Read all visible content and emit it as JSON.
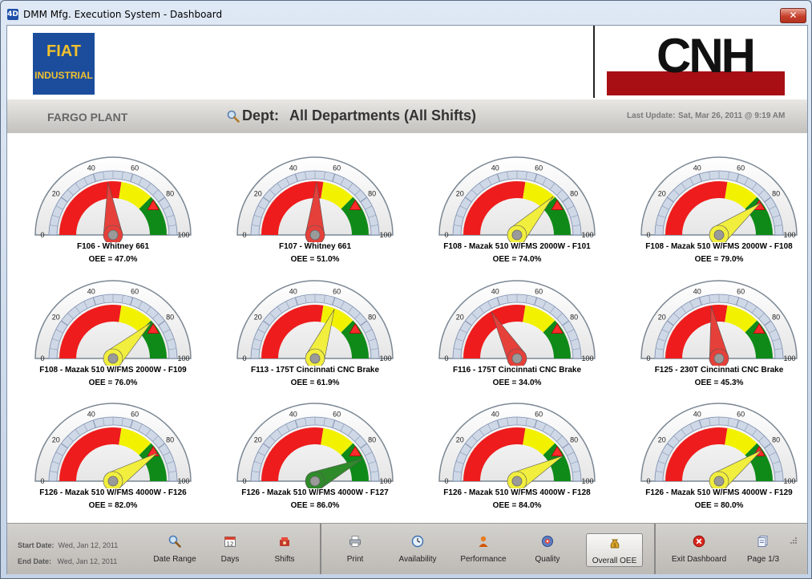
{
  "window": {
    "title": "DMM Mfg. Execution System - Dashboard",
    "icon": "4D-app-icon",
    "close": "✕"
  },
  "header": {
    "left_logo": {
      "line1": "FIAT",
      "line2": "INDUSTRIAL"
    },
    "right_logo": {
      "text": "CNH"
    }
  },
  "deptbar": {
    "plant": "FARGO PLANT",
    "dept_label": "Dept:",
    "dept_value": "All Departments  (All Shifts)",
    "last_update_label": "Last Update:",
    "last_update_value": "Sat, Mar 26, 2011  @  9:19 AM"
  },
  "gauge_scale": {
    "ticks": [
      "0",
      "20",
      "40",
      "60",
      "80",
      "100"
    ],
    "target": 80
  },
  "colors": {
    "red_band": "#ee1c1c",
    "yellow_band": "#f2f200",
    "green_band": "#0f8a18",
    "needle_red": "#e6403a",
    "needle_yellow": "#f1ee3e",
    "needle_green": "#2f8a2a"
  },
  "gauges": [
    {
      "name": "F106 - Whitney 661",
      "oee_text": "OEE = 47.0%",
      "value": 47.0,
      "needle": "red"
    },
    {
      "name": "F107 - Whitney 661",
      "oee_text": "OEE = 51.0%",
      "value": 51.0,
      "needle": "red"
    },
    {
      "name": "F108 - Mazak 510 W/FMS 2000W - F101",
      "oee_text": "OEE = 74.0%",
      "value": 74.0,
      "needle": "yellow"
    },
    {
      "name": "F108 - Mazak 510 W/FMS 2000W - F108",
      "oee_text": "OEE = 79.0%",
      "value": 79.0,
      "needle": "yellow"
    },
    {
      "name": "F108 - Mazak 510 W/FMS 2000W - F109",
      "oee_text": "OEE = 76.0%",
      "value": 76.0,
      "needle": "yellow"
    },
    {
      "name": "F113 - 175T Cincinnati CNC Brake",
      "oee_text": "OEE = 61.9%",
      "value": 61.9,
      "needle": "yellow"
    },
    {
      "name": "F116 - 175T Cincinnati CNC Brake",
      "oee_text": "OEE = 34.0%",
      "value": 34.0,
      "needle": "red"
    },
    {
      "name": "F125 - 230T Cincinnati CNC Brake",
      "oee_text": "OEE = 45.3%",
      "value": 45.3,
      "needle": "red"
    },
    {
      "name": "F126 - Mazak 510 W/FMS 4000W - F126",
      "oee_text": "OEE = 82.0%",
      "value": 82.0,
      "needle": "yellow"
    },
    {
      "name": "F126 - Mazak 510 W/FMS 4000W - F127",
      "oee_text": "OEE = 86.0%",
      "value": 86.0,
      "needle": "green"
    },
    {
      "name": "F126 - Mazak 510 W/FMS 4000W - F128",
      "oee_text": "OEE = 84.0%",
      "value": 84.0,
      "needle": "yellow"
    },
    {
      "name": "F126 - Mazak 510 W/FMS 4000W - F129",
      "oee_text": "OEE = 80.0%",
      "value": 80.0,
      "needle": "yellow"
    }
  ],
  "toolbar": {
    "start_label": "Start Date:",
    "start_value": "Wed, Jan 12, 2011",
    "end_label": "End Date:",
    "end_value": "Wed, Jan 12, 2011",
    "buttons": [
      {
        "label": "Date Range",
        "icon": "magnifier-icon"
      },
      {
        "label": "Days",
        "icon": "calendar-icon",
        "icon_text": "12"
      },
      {
        "label": "Shifts",
        "icon": "shifts-icon"
      },
      {
        "label": "Print",
        "icon": "printer-icon"
      },
      {
        "label": "Availability",
        "icon": "clock-icon"
      },
      {
        "label": "Performance",
        "icon": "person-icon"
      },
      {
        "label": "Quality",
        "icon": "quality-icon"
      },
      {
        "label": "Overall OEE",
        "icon": "money-bag-icon",
        "selected": true
      },
      {
        "label": "Exit Dashboard",
        "icon": "exit-icon"
      },
      {
        "label": "Page 1/3",
        "icon": "pages-icon"
      }
    ]
  }
}
